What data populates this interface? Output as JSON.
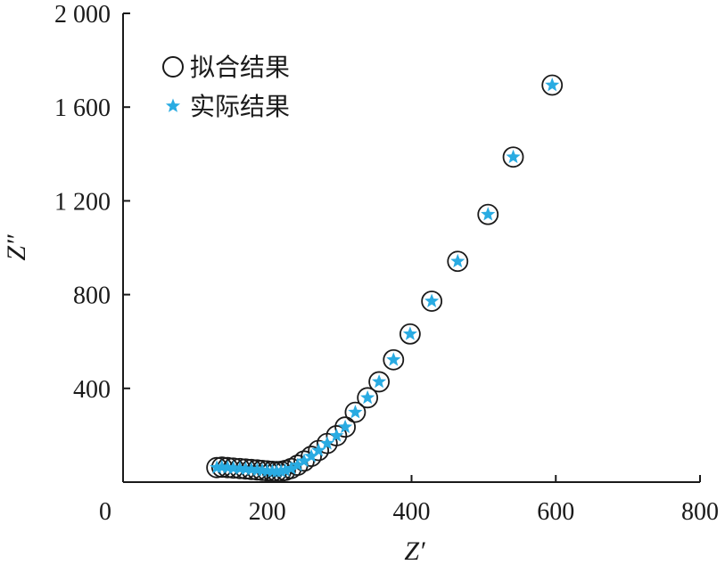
{
  "chart_data": {
    "type": "scatter",
    "xlabel": "Z′",
    "ylabel": "Z″",
    "xlim": [
      0,
      800
    ],
    "ylim": [
      0,
      2000
    ],
    "x_ticks": [
      0,
      200,
      400,
      600,
      800
    ],
    "y_ticks": [
      400,
      800,
      1200,
      1600,
      2000
    ],
    "x_tick_labels": [
      "0",
      "200",
      "400",
      "600",
      "800"
    ],
    "y_tick_labels": [
      "400",
      "800",
      "1 200",
      "1 600",
      "2 000"
    ],
    "grid": false,
    "legend_position": "top-left",
    "series": [
      {
        "name": "拟合结果",
        "marker": "open-circle",
        "color": "#1a1a1a",
        "points": [
          [
            130,
            62
          ],
          [
            137,
            64
          ],
          [
            145,
            62
          ],
          [
            153,
            60
          ],
          [
            162,
            58
          ],
          [
            170,
            56
          ],
          [
            178,
            54
          ],
          [
            186,
            52
          ],
          [
            193,
            50
          ],
          [
            200,
            48
          ],
          [
            207,
            46
          ],
          [
            213,
            45
          ],
          [
            219,
            46
          ],
          [
            225,
            50
          ],
          [
            233,
            58
          ],
          [
            242,
            72
          ],
          [
            251,
            90
          ],
          [
            261,
            110
          ],
          [
            271,
            135
          ],
          [
            283,
            165
          ],
          [
            296,
            198
          ],
          [
            308,
            235
          ],
          [
            322,
            298
          ],
          [
            339,
            360
          ],
          [
            355,
            428
          ],
          [
            375,
            522
          ],
          [
            398,
            632
          ],
          [
            428,
            772
          ],
          [
            464,
            942
          ],
          [
            506,
            1142
          ],
          [
            541,
            1387
          ],
          [
            595,
            1694
          ]
        ]
      },
      {
        "name": "实际结果",
        "marker": "star",
        "color": "#29abe2",
        "points": [
          [
            130,
            62
          ],
          [
            137,
            64
          ],
          [
            145,
            62
          ],
          [
            153,
            60
          ],
          [
            162,
            58
          ],
          [
            170,
            56
          ],
          [
            178,
            54
          ],
          [
            186,
            52
          ],
          [
            193,
            50
          ],
          [
            200,
            48
          ],
          [
            207,
            46
          ],
          [
            213,
            45
          ],
          [
            219,
            46
          ],
          [
            225,
            50
          ],
          [
            233,
            58
          ],
          [
            242,
            72
          ],
          [
            251,
            90
          ],
          [
            261,
            110
          ],
          [
            271,
            135
          ],
          [
            283,
            165
          ],
          [
            296,
            198
          ],
          [
            308,
            235
          ],
          [
            322,
            298
          ],
          [
            339,
            360
          ],
          [
            355,
            428
          ],
          [
            375,
            522
          ],
          [
            398,
            632
          ],
          [
            428,
            772
          ],
          [
            464,
            942
          ],
          [
            506,
            1142
          ],
          [
            541,
            1387
          ],
          [
            595,
            1694
          ]
        ]
      }
    ]
  }
}
